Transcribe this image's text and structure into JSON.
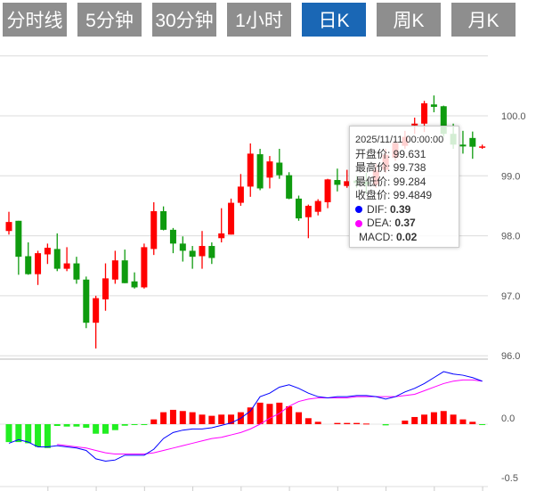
{
  "tabs": [
    {
      "label": "分时线",
      "active": false
    },
    {
      "label": "5分钟",
      "active": false
    },
    {
      "label": "30分钟",
      "active": false
    },
    {
      "label": "1小时",
      "active": false
    },
    {
      "label": "日K",
      "active": true
    },
    {
      "label": "周K",
      "active": false
    },
    {
      "label": "月K",
      "active": false
    }
  ],
  "colors": {
    "tab_bg": "#8e8e8e",
    "tab_active": "#1a67b5",
    "up": "#ff0000",
    "down": "#0f9b0f",
    "hist_down": "#22ee22",
    "dif": "#0000ff",
    "dea": "#ff00ff"
  },
  "tooltip": {
    "date": "2025/11/11 00:00:00",
    "open_label": "开盘价: ",
    "open": "99.631",
    "high_label": "最高价: ",
    "high": "99.738",
    "low_label": "最低价: ",
    "low": "99.284",
    "close_label": "收盘价: ",
    "close": "99.4849",
    "dif_label": "DIF: ",
    "dif": "0.39",
    "dea_label": "DEA: ",
    "dea": "0.37",
    "macd_label": "MACD: ",
    "macd": "0.02"
  },
  "chart_data": [
    {
      "type": "candlestick",
      "y_ticks": [
        "100.0",
        "99.0",
        "98.0",
        "97.0",
        "96.0"
      ],
      "ylim": [
        96.0,
        101.0
      ],
      "grid": true,
      "ohlc": [
        [
          98.08,
          98.4,
          98.02,
          98.23
        ],
        [
          98.25,
          98.25,
          97.35,
          97.65
        ],
        [
          97.66,
          97.89,
          97.35,
          97.36
        ],
        [
          97.36,
          97.75,
          97.18,
          97.71
        ],
        [
          97.69,
          97.87,
          97.53,
          97.8
        ],
        [
          97.78,
          98.04,
          97.41,
          97.45
        ],
        [
          97.45,
          97.81,
          97.41,
          97.54
        ],
        [
          97.54,
          97.65,
          97.2,
          97.27
        ],
        [
          97.27,
          97.32,
          96.46,
          96.55
        ],
        [
          96.55,
          97.0,
          96.12,
          96.96
        ],
        [
          96.94,
          97.54,
          96.75,
          97.29
        ],
        [
          97.27,
          97.75,
          97.2,
          97.59
        ],
        [
          97.59,
          97.77,
          97.21,
          97.21
        ],
        [
          97.24,
          97.39,
          97.12,
          97.14
        ],
        [
          97.14,
          97.87,
          97.12,
          97.81
        ],
        [
          97.78,
          98.56,
          97.68,
          98.41
        ],
        [
          98.41,
          98.49,
          98.09,
          98.1
        ],
        [
          98.1,
          98.13,
          97.71,
          97.87
        ],
        [
          97.87,
          97.99,
          97.57,
          97.75
        ],
        [
          97.75,
          97.83,
          97.45,
          97.65
        ],
        [
          97.66,
          98.08,
          97.45,
          97.83
        ],
        [
          97.83,
          97.89,
          97.53,
          97.63
        ],
        [
          97.96,
          98.46,
          97.89,
          98.04
        ],
        [
          98.02,
          98.62,
          98.02,
          98.55
        ],
        [
          98.55,
          99.03,
          98.5,
          98.82
        ],
        [
          98.82,
          99.54,
          98.65,
          99.37
        ],
        [
          99.36,
          99.45,
          98.76,
          98.79
        ],
        [
          98.97,
          99.33,
          98.79,
          99.24
        ],
        [
          99.22,
          99.45,
          98.95,
          99.01
        ],
        [
          99.01,
          99.06,
          98.61,
          98.62
        ],
        [
          98.62,
          98.67,
          98.25,
          98.29
        ],
        [
          98.31,
          98.52,
          97.96,
          98.5
        ],
        [
          98.4,
          98.61,
          98.34,
          98.58
        ],
        [
          98.56,
          98.95,
          98.46,
          98.94
        ],
        [
          98.93,
          99.12,
          98.74,
          98.85
        ],
        [
          98.83,
          99.1,
          98.8,
          98.91
        ],
        [
          98.92,
          99.0,
          98.8,
          98.88
        ],
        [
          98.9,
          99.05,
          98.7,
          98.85
        ],
        [
          98.85,
          99.2,
          98.8,
          99.1
        ],
        [
          99.1,
          99.45,
          99.05,
          99.35
        ],
        [
          99.3,
          99.6,
          99.25,
          99.55
        ],
        [
          99.5,
          99.75,
          99.45,
          99.65
        ],
        [
          99.84,
          99.97,
          99.7,
          99.87
        ],
        [
          99.87,
          100.25,
          99.73,
          100.21
        ],
        [
          100.19,
          100.34,
          100.06,
          100.15
        ],
        [
          100.16,
          100.17,
          99.65,
          99.7
        ],
        [
          99.7,
          99.87,
          99.45,
          99.52
        ],
        [
          99.52,
          99.75,
          99.37,
          99.49
        ],
        [
          99.631,
          99.738,
          99.284,
          99.4849
        ],
        [
          99.47,
          99.52,
          99.45,
          99.49
        ]
      ]
    },
    {
      "type": "macd",
      "y_ticks": [
        "0.0",
        "-0.5"
      ],
      "ylim": [
        -0.5,
        0.55
      ],
      "dif": [
        -0.16,
        -0.13,
        -0.15,
        -0.19,
        -0.19,
        -0.18,
        -0.19,
        -0.2,
        -0.22,
        -0.29,
        -0.31,
        -0.3,
        -0.26,
        -0.26,
        -0.26,
        -0.21,
        -0.12,
        -0.07,
        -0.05,
        -0.04,
        -0.04,
        -0.03,
        -0.01,
        0.01,
        0.05,
        0.11,
        0.23,
        0.26,
        0.31,
        0.33,
        0.3,
        0.26,
        0.23,
        0.22,
        0.23,
        0.23,
        0.24,
        0.24,
        0.23,
        0.21,
        0.23,
        0.27,
        0.3,
        0.34,
        0.39,
        0.44,
        0.42,
        0.41,
        0.39,
        0.36
      ],
      "dea": [
        null,
        null,
        null,
        null,
        null,
        -0.17,
        -0.18,
        -0.19,
        -0.2,
        -0.22,
        -0.24,
        -0.25,
        -0.25,
        -0.25,
        -0.25,
        -0.24,
        -0.22,
        -0.2,
        -0.18,
        -0.16,
        -0.14,
        -0.12,
        -0.11,
        -0.09,
        -0.07,
        -0.04,
        0.0,
        0.05,
        0.09,
        0.15,
        0.19,
        0.21,
        0.22,
        0.22,
        0.22,
        0.22,
        0.23,
        0.23,
        0.23,
        0.23,
        0.23,
        0.24,
        0.25,
        0.28,
        0.31,
        0.34,
        0.36,
        0.37,
        0.37,
        0.36
      ],
      "macd": [
        -0.15,
        -0.15,
        -0.16,
        -0.19,
        -0.2,
        -0.015,
        -0.02,
        -0.02,
        -0.03,
        -0.08,
        -0.08,
        -0.05,
        -0.013,
        -0.007,
        -0.007,
        0.04,
        0.1,
        0.12,
        0.11,
        0.1,
        0.08,
        0.07,
        0.08,
        0.08,
        0.1,
        0.14,
        0.18,
        0.17,
        0.18,
        0.15,
        0.1,
        0.05,
        0.02,
        0,
        0.01,
        0.01,
        0.01,
        0.005,
        0,
        -0.01,
        0,
        0.03,
        0.06,
        0.08,
        0.1,
        0.11,
        0.08,
        0.04,
        0.02,
        -0.005
      ]
    }
  ]
}
